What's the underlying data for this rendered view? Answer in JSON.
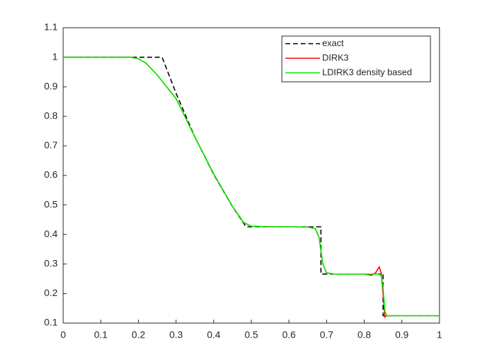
{
  "chart_data": {
    "type": "line",
    "xlim": [
      0,
      1
    ],
    "ylim": [
      0.1,
      1.1
    ],
    "xticks": [
      0,
      0.1,
      0.2,
      0.3,
      0.4,
      0.5,
      0.6,
      0.7,
      0.8,
      0.9,
      1
    ],
    "yticks": [
      0.1,
      0.2,
      0.3,
      0.4,
      0.5,
      0.6,
      0.7,
      0.8,
      0.9,
      1,
      1.1
    ],
    "legend": "top-right",
    "grid": false,
    "series": [
      {
        "name": "exact",
        "color": "#000000",
        "style": "dashed",
        "x": [
          0,
          0.263,
          0.3,
          0.35,
          0.4,
          0.45,
          0.486,
          0.685,
          0.685,
          0.85,
          0.85,
          1
        ],
        "values": [
          1,
          1,
          0.878,
          0.73,
          0.603,
          0.494,
          0.426,
          0.426,
          0.266,
          0.266,
          0.125,
          0.125
        ]
      },
      {
        "name": "DIRK3",
        "color": "#ff0000",
        "style": "solid",
        "x": [
          0,
          0.18,
          0.2,
          0.22,
          0.25,
          0.3,
          0.35,
          0.4,
          0.45,
          0.48,
          0.5,
          0.55,
          0.6,
          0.65,
          0.67,
          0.68,
          0.69,
          0.7,
          0.72,
          0.8,
          0.82,
          0.83,
          0.84,
          0.845,
          0.85,
          0.855,
          0.86,
          0.9,
          1
        ],
        "values": [
          1,
          1,
          0.995,
          0.98,
          0.94,
          0.86,
          0.73,
          0.605,
          0.495,
          0.44,
          0.428,
          0.426,
          0.426,
          0.425,
          0.42,
          0.39,
          0.3,
          0.27,
          0.266,
          0.266,
          0.262,
          0.27,
          0.29,
          0.27,
          0.2,
          0.12,
          0.125,
          0.125,
          0.125
        ]
      },
      {
        "name": "LDIRK3 density based",
        "color": "#00ee00",
        "style": "solid",
        "x": [
          0,
          0.18,
          0.2,
          0.22,
          0.25,
          0.3,
          0.35,
          0.4,
          0.45,
          0.48,
          0.5,
          0.55,
          0.6,
          0.65,
          0.67,
          0.68,
          0.69,
          0.7,
          0.72,
          0.8,
          0.83,
          0.84,
          0.845,
          0.85,
          0.855,
          0.86,
          0.9,
          1
        ],
        "values": [
          1,
          1,
          0.995,
          0.98,
          0.94,
          0.86,
          0.73,
          0.605,
          0.495,
          0.44,
          0.428,
          0.426,
          0.426,
          0.425,
          0.42,
          0.39,
          0.3,
          0.27,
          0.266,
          0.266,
          0.266,
          0.265,
          0.26,
          0.22,
          0.14,
          0.125,
          0.125,
          0.125
        ]
      }
    ]
  }
}
